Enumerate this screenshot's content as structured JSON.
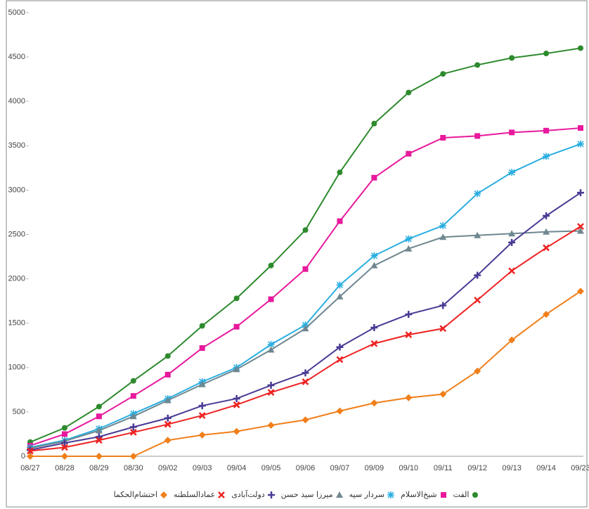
{
  "chart_data": {
    "type": "line",
    "categories": [
      "08/27",
      "08/28",
      "08/29",
      "08/30",
      "09/02",
      "09/03",
      "09/04",
      "09/05",
      "09/06",
      "09/07",
      "09/09",
      "09/10",
      "09/11",
      "09/12",
      "09/13",
      "09/14",
      "09/23"
    ],
    "ylim": [
      0,
      5000
    ],
    "yticks": [
      0,
      500,
      1000,
      1500,
      2000,
      2500,
      3000,
      3500,
      4000,
      4500,
      5000
    ],
    "series": [
      {
        "name": "الفت",
        "color": "#2d8a2d",
        "marker": "circle",
        "values": [
          160,
          320,
          560,
          850,
          1130,
          1470,
          1780,
          2150,
          2550,
          3200,
          3750,
          4100,
          4310,
          4410,
          4490,
          4540,
          4600
        ]
      },
      {
        "name": "شیخ‌الاسلام",
        "color": "#e8199c",
        "marker": "square",
        "values": [
          120,
          250,
          450,
          680,
          920,
          1220,
          1460,
          1770,
          2110,
          2650,
          3140,
          3410,
          3590,
          3610,
          3650,
          3670,
          3700
        ]
      },
      {
        "name": "سردار سپه",
        "color": "#2aaee0",
        "marker": "star",
        "values": [
          100,
          180,
          310,
          480,
          650,
          840,
          1000,
          1260,
          1480,
          1930,
          2260,
          2450,
          2600,
          2960,
          3200,
          3380,
          3520
        ]
      },
      {
        "name": "میرزا سید حسن",
        "color": "#6f8790",
        "marker": "triangle",
        "values": [
          90,
          170,
          290,
          450,
          630,
          810,
          980,
          1200,
          1440,
          1800,
          2150,
          2340,
          2470,
          2490,
          2510,
          2530,
          2540
        ]
      },
      {
        "name": "دولت‌آبادی",
        "color": "#4a3a94",
        "marker": "plus",
        "values": [
          70,
          150,
          220,
          330,
          430,
          570,
          650,
          800,
          940,
          1230,
          1450,
          1600,
          1700,
          2040,
          2410,
          2710,
          2970
        ]
      },
      {
        "name": "عمادالسلطنه",
        "color": "#ee2222",
        "marker": "cross",
        "values": [
          60,
          100,
          180,
          270,
          360,
          460,
          580,
          720,
          840,
          1090,
          1270,
          1370,
          1440,
          1760,
          2090,
          2350,
          2590
        ]
      },
      {
        "name": "احتشام‌الحکما",
        "color": "#f07f1a",
        "marker": "diamond",
        "values": [
          0,
          0,
          0,
          0,
          180,
          240,
          280,
          350,
          410,
          510,
          600,
          660,
          700,
          960,
          1310,
          1600,
          1860
        ]
      }
    ]
  }
}
